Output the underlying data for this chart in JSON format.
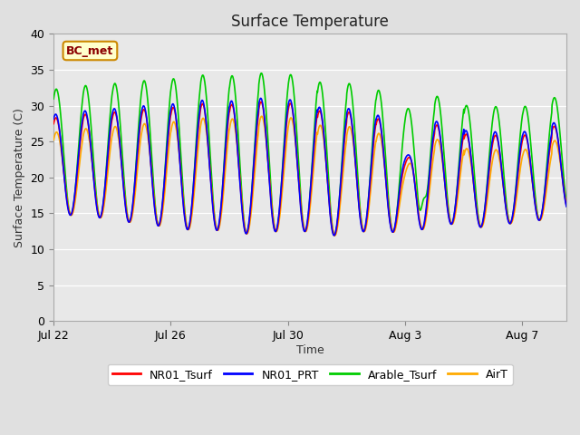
{
  "title": "Surface Temperature",
  "ylabel": "Surface Temperature (C)",
  "xlabel": "Time",
  "annotation": "BC_met",
  "ylim": [
    0,
    40
  ],
  "yticks": [
    0,
    5,
    10,
    15,
    20,
    25,
    30,
    35,
    40
  ],
  "xtick_labels": [
    "Jul 22",
    "Jul 26",
    "Jul 30",
    "Aug 3",
    "Aug 7"
  ],
  "xtick_positions": [
    0,
    4,
    8,
    12,
    16
  ],
  "xlim": [
    0,
    17.5
  ],
  "n_days": 17.5,
  "bg_color": "#e0e0e0",
  "plot_bg_color": "#e8e8e8",
  "colors": {
    "NR01_Tsurf": "#ff0000",
    "NR01_PRT": "#0000ff",
    "Arable_Tsurf": "#00cc00",
    "AirT": "#ffaa00"
  },
  "legend_entries": [
    "NR01_Tsurf",
    "NR01_PRT",
    "Arable_Tsurf",
    "AirT"
  ]
}
